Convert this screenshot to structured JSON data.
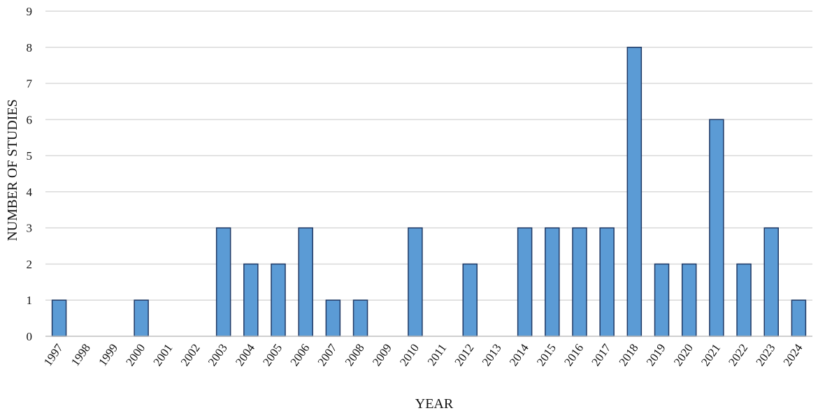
{
  "chart_data": {
    "type": "bar",
    "title": "",
    "xlabel": "YEAR",
    "ylabel": "NUMBER OF STUDIES",
    "categories": [
      "1997",
      "1998",
      "1999",
      "2000",
      "2001",
      "2002",
      "2003",
      "2004",
      "2005",
      "2006",
      "2007",
      "2008",
      "2009",
      "2010",
      "2011",
      "2012",
      "2013",
      "2014",
      "2015",
      "2016",
      "2017",
      "2018",
      "2019",
      "2020",
      "2021",
      "2022",
      "2023",
      "2024"
    ],
    "values": [
      1,
      0,
      0,
      1,
      0,
      0,
      3,
      2,
      2,
      3,
      1,
      1,
      0,
      3,
      0,
      2,
      0,
      3,
      3,
      3,
      3,
      8,
      2,
      2,
      6,
      2,
      3,
      1
    ],
    "ylim": [
      0,
      9
    ],
    "yticks": [
      0,
      1,
      2,
      3,
      4,
      5,
      6,
      7,
      8,
      9
    ],
    "grid": true,
    "legend": "none",
    "colors": {
      "bar_fill": "#5b9bd5",
      "bar_stroke": "#1f3864",
      "grid": "#d9d9d9",
      "axis": "#bfbfbf"
    }
  }
}
